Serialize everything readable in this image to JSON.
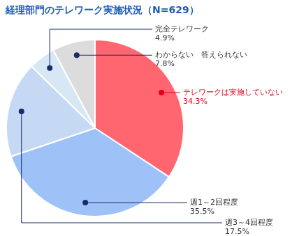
{
  "chart_data": {
    "type": "pie",
    "title": "経理部門のテレワーク実施状況（N=629）",
    "categories": [
      "テレワークは実施していない",
      "週1～2回程度",
      "週3～4回程度",
      "完全テレワーク",
      "わからない　答えられない"
    ],
    "values": [
      34.3,
      35.5,
      17.5,
      4.9,
      7.8
    ],
    "value_labels": [
      "34.3%",
      "35.5%",
      "17.5%",
      "4.9%",
      "7.8%"
    ],
    "colors": [
      "#ff6670",
      "#9ec2f8",
      "#c5d9f5",
      "#d8e7f4",
      "#dcdcdc"
    ],
    "data_labels": true
  }
}
